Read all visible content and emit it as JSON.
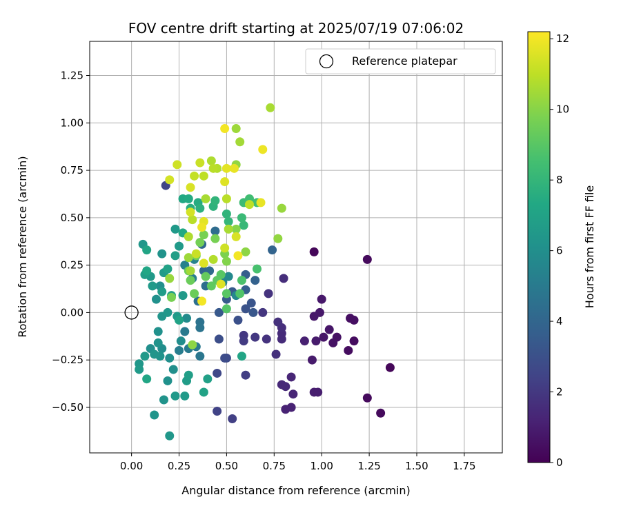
{
  "chart_data": {
    "type": "scatter",
    "title": "FOV centre drift starting at 2025/07/19 07:06:02",
    "xlabel": "Angular distance from reference (arcmin)",
    "ylabel": "Rotation from reference (arcmin)",
    "xlim": [
      -0.22,
      1.95
    ],
    "ylim": [
      -0.74,
      1.43
    ],
    "xticks": [
      "0.00",
      "0.25",
      "0.50",
      "0.75",
      "1.00",
      "1.25",
      "1.50",
      "1.75"
    ],
    "xtick_values": [
      0,
      0.25,
      0.5,
      0.75,
      1.0,
      1.25,
      1.5,
      1.75
    ],
    "yticks": [
      "−0.50",
      "−0.25",
      "0.00",
      "0.25",
      "0.50",
      "0.75",
      "1.00",
      "1.25"
    ],
    "ytick_values": [
      -0.5,
      -0.25,
      0,
      0.25,
      0.5,
      0.75,
      1.0,
      1.25
    ],
    "grid": true,
    "legend": {
      "position": "top-right",
      "entries": [
        "Reference platepar"
      ]
    },
    "reference_point": {
      "x": 0.0,
      "y": 0.0
    },
    "colorbar": {
      "label": "Hours from first FF file",
      "range": [
        0,
        12.2
      ],
      "ticks": [
        "0",
        "2",
        "4",
        "6",
        "8",
        "10",
        "12"
      ],
      "tick_values": [
        0,
        2,
        4,
        6,
        8,
        10,
        12
      ],
      "colormap": "viridis"
    },
    "points": [
      {
        "x": 0.96,
        "y": 0.32,
        "h": 0.2
      },
      {
        "x": 1.24,
        "y": 0.28,
        "h": 0.3
      },
      {
        "x": 1.36,
        "y": -0.29,
        "h": 0.2
      },
      {
        "x": 1.31,
        "y": -0.53,
        "h": 0.3
      },
      {
        "x": 1.24,
        "y": -0.45,
        "h": 0.3
      },
      {
        "x": 1.17,
        "y": -0.15,
        "h": 0.4
      },
      {
        "x": 1.14,
        "y": -0.2,
        "h": 0.4
      },
      {
        "x": 1.15,
        "y": -0.03,
        "h": 0.5
      },
      {
        "x": 1.17,
        "y": -0.04,
        "h": 0.5
      },
      {
        "x": 1.08,
        "y": -0.13,
        "h": 0.6
      },
      {
        "x": 1.06,
        "y": -0.16,
        "h": 0.6
      },
      {
        "x": 1.04,
        "y": -0.09,
        "h": 0.7
      },
      {
        "x": 1.01,
        "y": -0.13,
        "h": 0.7
      },
      {
        "x": 1.0,
        "y": 0.07,
        "h": 0.8
      },
      {
        "x": 0.99,
        "y": 0.0,
        "h": 0.8
      },
      {
        "x": 0.96,
        "y": -0.02,
        "h": 0.8
      },
      {
        "x": 0.97,
        "y": -0.15,
        "h": 0.9
      },
      {
        "x": 0.95,
        "y": -0.25,
        "h": 0.9
      },
      {
        "x": 0.96,
        "y": -0.42,
        "h": 1.0
      },
      {
        "x": 0.98,
        "y": -0.42,
        "h": 1.0
      },
      {
        "x": 0.91,
        "y": -0.15,
        "h": 1.1
      },
      {
        "x": 0.84,
        "y": -0.5,
        "h": 1.2
      },
      {
        "x": 0.81,
        "y": -0.51,
        "h": 1.2
      },
      {
        "x": 0.85,
        "y": -0.43,
        "h": 1.3
      },
      {
        "x": 0.84,
        "y": -0.34,
        "h": 1.3
      },
      {
        "x": 0.79,
        "y": -0.38,
        "h": 1.4
      },
      {
        "x": 0.81,
        "y": -0.39,
        "h": 1.4
      },
      {
        "x": 0.79,
        "y": -0.14,
        "h": 1.5
      },
      {
        "x": 0.79,
        "y": -0.11,
        "h": 1.5
      },
      {
        "x": 0.79,
        "y": -0.08,
        "h": 1.6
      },
      {
        "x": 0.8,
        "y": 0.18,
        "h": 1.6
      },
      {
        "x": 0.77,
        "y": -0.05,
        "h": 1.7
      },
      {
        "x": 0.76,
        "y": -0.22,
        "h": 1.7
      },
      {
        "x": 0.71,
        "y": -0.14,
        "h": 1.8
      },
      {
        "x": 0.72,
        "y": 0.1,
        "h": 1.8
      },
      {
        "x": 0.69,
        "y": 0.0,
        "h": 1.9
      },
      {
        "x": 0.65,
        "y": -0.13,
        "h": 2.0
      },
      {
        "x": 0.59,
        "y": -0.12,
        "h": 2.0
      },
      {
        "x": 0.59,
        "y": -0.15,
        "h": 2.1
      },
      {
        "x": 0.6,
        "y": -0.33,
        "h": 2.2
      },
      {
        "x": 0.53,
        "y": -0.56,
        "h": 2.3
      },
      {
        "x": 0.45,
        "y": -0.52,
        "h": 2.4
      },
      {
        "x": 0.18,
        "y": 0.67,
        "h": 2.5
      },
      {
        "x": 0.45,
        "y": -0.32,
        "h": 2.6
      },
      {
        "x": 0.5,
        "y": -0.24,
        "h": 2.7
      },
      {
        "x": 0.49,
        "y": -0.24,
        "h": 2.8
      },
      {
        "x": 0.46,
        "y": -0.14,
        "h": 2.9
      },
      {
        "x": 0.56,
        "y": -0.04,
        "h": 3.0
      },
      {
        "x": 0.6,
        "y": 0.02,
        "h": 3.1
      },
      {
        "x": 0.63,
        "y": 0.05,
        "h": 3.2
      },
      {
        "x": 0.64,
        "y": 0.0,
        "h": 3.3
      },
      {
        "x": 0.46,
        "y": 0.0,
        "h": 3.4
      },
      {
        "x": 0.53,
        "y": 0.11,
        "h": 3.5
      },
      {
        "x": 0.5,
        "y": 0.07,
        "h": 3.5
      },
      {
        "x": 0.6,
        "y": 0.2,
        "h": 3.6
      },
      {
        "x": 0.6,
        "y": 0.12,
        "h": 3.7
      },
      {
        "x": 0.65,
        "y": 0.17,
        "h": 3.8
      },
      {
        "x": 0.74,
        "y": 0.33,
        "h": 3.9
      },
      {
        "x": 0.38,
        "y": 0.22,
        "h": 4.0
      },
      {
        "x": 0.37,
        "y": 0.36,
        "h": 4.1
      },
      {
        "x": 0.41,
        "y": 0.22,
        "h": 4.2
      },
      {
        "x": 0.44,
        "y": 0.43,
        "h": 4.3
      },
      {
        "x": 0.39,
        "y": 0.14,
        "h": 4.4
      },
      {
        "x": 0.35,
        "y": 0.06,
        "h": 4.5
      },
      {
        "x": 0.36,
        "y": -0.05,
        "h": 4.6
      },
      {
        "x": 0.36,
        "y": -0.08,
        "h": 4.7
      },
      {
        "x": 0.36,
        "y": -0.23,
        "h": 4.8
      },
      {
        "x": 0.34,
        "y": -0.18,
        "h": 4.9
      },
      {
        "x": 0.3,
        "y": -0.19,
        "h": 5.0
      },
      {
        "x": 0.28,
        "y": -0.1,
        "h": 5.0
      },
      {
        "x": 0.25,
        "y": -0.2,
        "h": 5.1
      },
      {
        "x": 0.32,
        "y": 0.18,
        "h": 5.2
      },
      {
        "x": 0.28,
        "y": 0.25,
        "h": 5.3
      },
      {
        "x": 0.33,
        "y": 0.28,
        "h": 5.4
      },
      {
        "x": 0.48,
        "y": 0.16,
        "h": 5.5
      },
      {
        "x": 0.55,
        "y": 0.09,
        "h": 5.6
      },
      {
        "x": 0.51,
        "y": 0.19,
        "h": 5.7
      },
      {
        "x": 0.29,
        "y": -0.03,
        "h": 5.8
      },
      {
        "x": 0.26,
        "y": -0.15,
        "h": 5.9
      },
      {
        "x": 0.2,
        "y": -0.24,
        "h": 6.0
      },
      {
        "x": 0.22,
        "y": -0.3,
        "h": 6.0
      },
      {
        "x": 0.19,
        "y": -0.36,
        "h": 6.1
      },
      {
        "x": 0.17,
        "y": -0.46,
        "h": 6.2
      },
      {
        "x": 0.12,
        "y": -0.54,
        "h": 6.3
      },
      {
        "x": 0.2,
        "y": -0.65,
        "h": 6.4
      },
      {
        "x": 0.23,
        "y": -0.44,
        "h": 6.5
      },
      {
        "x": 0.28,
        "y": -0.44,
        "h": 6.6
      },
      {
        "x": 0.29,
        "y": -0.36,
        "h": 6.7
      },
      {
        "x": 0.3,
        "y": -0.33,
        "h": 6.8
      },
      {
        "x": 0.4,
        "y": -0.35,
        "h": 6.9
      },
      {
        "x": 0.38,
        "y": -0.42,
        "h": 7.0
      },
      {
        "x": 0.58,
        "y": -0.23,
        "h": 7.1
      },
      {
        "x": 0.07,
        "y": -0.23,
        "h": 6.5
      },
      {
        "x": 0.04,
        "y": -0.27,
        "h": 6.4
      },
      {
        "x": 0.04,
        "y": -0.3,
        "h": 6.6
      },
      {
        "x": 0.08,
        "y": -0.35,
        "h": 7.2
      },
      {
        "x": 0.15,
        "y": -0.23,
        "h": 6.2
      },
      {
        "x": 0.12,
        "y": -0.22,
        "h": 6.3
      },
      {
        "x": 0.1,
        "y": -0.19,
        "h": 6.0
      },
      {
        "x": 0.14,
        "y": -0.16,
        "h": 6.2
      },
      {
        "x": 0.16,
        "y": -0.19,
        "h": 5.9
      },
      {
        "x": 0.14,
        "y": -0.1,
        "h": 6.1
      },
      {
        "x": 0.16,
        "y": -0.02,
        "h": 6.3
      },
      {
        "x": 0.19,
        "y": 0.0,
        "h": 6.4
      },
      {
        "x": 0.24,
        "y": -0.02,
        "h": 6.6
      },
      {
        "x": 0.25,
        "y": -0.04,
        "h": 7.0
      },
      {
        "x": 0.27,
        "y": 0.09,
        "h": 6.5
      },
      {
        "x": 0.21,
        "y": 0.09,
        "h": 6.8
      },
      {
        "x": 0.16,
        "y": 0.11,
        "h": 6.7
      },
      {
        "x": 0.13,
        "y": 0.07,
        "h": 6.1
      },
      {
        "x": 0.11,
        "y": 0.14,
        "h": 6.6
      },
      {
        "x": 0.15,
        "y": 0.14,
        "h": 6.0
      },
      {
        "x": 0.1,
        "y": 0.19,
        "h": 6.5
      },
      {
        "x": 0.07,
        "y": 0.2,
        "h": 6.8
      },
      {
        "x": 0.08,
        "y": 0.22,
        "h": 7.2
      },
      {
        "x": 0.17,
        "y": 0.21,
        "h": 6.6
      },
      {
        "x": 0.19,
        "y": 0.23,
        "h": 7.0
      },
      {
        "x": 0.23,
        "y": 0.3,
        "h": 6.8
      },
      {
        "x": 0.25,
        "y": 0.35,
        "h": 6.6
      },
      {
        "x": 0.16,
        "y": 0.31,
        "h": 6.2
      },
      {
        "x": 0.06,
        "y": 0.36,
        "h": 6.4
      },
      {
        "x": 0.08,
        "y": 0.33,
        "h": 7.1
      },
      {
        "x": 0.23,
        "y": 0.44,
        "h": 6.5
      },
      {
        "x": 0.27,
        "y": 0.42,
        "h": 7.3
      },
      {
        "x": 0.27,
        "y": 0.6,
        "h": 7.3
      },
      {
        "x": 0.3,
        "y": 0.6,
        "h": 7.4
      },
      {
        "x": 0.35,
        "y": 0.58,
        "h": 7.5
      },
      {
        "x": 0.31,
        "y": 0.55,
        "h": 7.6
      },
      {
        "x": 0.36,
        "y": 0.55,
        "h": 7.7
      },
      {
        "x": 0.43,
        "y": 0.56,
        "h": 7.8
      },
      {
        "x": 0.44,
        "y": 0.59,
        "h": 7.9
      },
      {
        "x": 0.5,
        "y": 0.52,
        "h": 7.9
      },
      {
        "x": 0.51,
        "y": 0.48,
        "h": 8.0
      },
      {
        "x": 0.59,
        "y": 0.46,
        "h": 8.1
      },
      {
        "x": 0.58,
        "y": 0.5,
        "h": 8.2
      },
      {
        "x": 0.59,
        "y": 0.58,
        "h": 8.3
      },
      {
        "x": 0.62,
        "y": 0.6,
        "h": 8.4
      },
      {
        "x": 0.66,
        "y": 0.58,
        "h": 8.5
      },
      {
        "x": 0.66,
        "y": 0.23,
        "h": 8.6
      },
      {
        "x": 0.58,
        "y": 0.17,
        "h": 8.7
      },
      {
        "x": 0.57,
        "y": 0.1,
        "h": 8.8
      },
      {
        "x": 0.5,
        "y": 0.02,
        "h": 8.9
      },
      {
        "x": 0.5,
        "y": 0.1,
        "h": 9.0
      },
      {
        "x": 0.47,
        "y": 0.2,
        "h": 9.0
      },
      {
        "x": 0.45,
        "y": 0.17,
        "h": 9.1
      },
      {
        "x": 0.42,
        "y": 0.14,
        "h": 9.2
      },
      {
        "x": 0.39,
        "y": 0.19,
        "h": 9.3
      },
      {
        "x": 0.33,
        "y": 0.1,
        "h": 9.4
      },
      {
        "x": 0.31,
        "y": 0.17,
        "h": 9.4
      },
      {
        "x": 0.3,
        "y": 0.22,
        "h": 9.5
      },
      {
        "x": 0.34,
        "y": 0.3,
        "h": 9.5
      },
      {
        "x": 0.36,
        "y": 0.37,
        "h": 9.6
      },
      {
        "x": 0.38,
        "y": 0.41,
        "h": 9.7
      },
      {
        "x": 0.44,
        "y": 0.39,
        "h": 9.7
      },
      {
        "x": 0.49,
        "y": 0.31,
        "h": 9.8
      },
      {
        "x": 0.5,
        "y": 0.27,
        "h": 9.9
      },
      {
        "x": 0.55,
        "y": 0.44,
        "h": 10.0
      },
      {
        "x": 0.6,
        "y": 0.32,
        "h": 10.1
      },
      {
        "x": 0.77,
        "y": 0.39,
        "h": 10.2
      },
      {
        "x": 0.79,
        "y": 0.55,
        "h": 10.3
      },
      {
        "x": 0.55,
        "y": 0.97,
        "h": 10.4
      },
      {
        "x": 0.57,
        "y": 0.9,
        "h": 10.5
      },
      {
        "x": 0.73,
        "y": 1.08,
        "h": 10.6
      },
      {
        "x": 0.42,
        "y": 0.8,
        "h": 10.7
      },
      {
        "x": 0.45,
        "y": 0.76,
        "h": 10.8
      },
      {
        "x": 0.43,
        "y": 0.76,
        "h": 10.9
      },
      {
        "x": 0.38,
        "y": 0.72,
        "h": 11.0
      },
      {
        "x": 0.33,
        "y": 0.72,
        "h": 11.1
      },
      {
        "x": 0.36,
        "y": 0.79,
        "h": 11.2
      },
      {
        "x": 0.24,
        "y": 0.78,
        "h": 11.3
      },
      {
        "x": 0.2,
        "y": 0.7,
        "h": 11.4
      },
      {
        "x": 0.31,
        "y": 0.66,
        "h": 11.5
      },
      {
        "x": 0.49,
        "y": 0.69,
        "h": 11.6
      },
      {
        "x": 0.5,
        "y": 0.76,
        "h": 11.7
      },
      {
        "x": 0.54,
        "y": 0.76,
        "h": 11.8
      },
      {
        "x": 0.69,
        "y": 0.86,
        "h": 11.9
      },
      {
        "x": 0.49,
        "y": 0.97,
        "h": 12.0
      },
      {
        "x": 0.55,
        "y": 0.78,
        "h": 10.2
      },
      {
        "x": 0.51,
        "y": 0.44,
        "h": 10.6
      },
      {
        "x": 0.62,
        "y": 0.57,
        "h": 11.0
      },
      {
        "x": 0.68,
        "y": 0.58,
        "h": 11.8
      },
      {
        "x": 0.55,
        "y": 0.4,
        "h": 11.5
      },
      {
        "x": 0.56,
        "y": 0.3,
        "h": 12.0
      },
      {
        "x": 0.49,
        "y": 0.34,
        "h": 11.3
      },
      {
        "x": 0.47,
        "y": 0.15,
        "h": 11.6
      },
      {
        "x": 0.43,
        "y": 0.28,
        "h": 10.8
      },
      {
        "x": 0.31,
        "y": 0.53,
        "h": 11.4
      },
      {
        "x": 0.32,
        "y": 0.49,
        "h": 10.9
      },
      {
        "x": 0.38,
        "y": 0.48,
        "h": 11.7
      },
      {
        "x": 0.37,
        "y": 0.45,
        "h": 11.9
      },
      {
        "x": 0.34,
        "y": 0.31,
        "h": 11.2
      },
      {
        "x": 0.38,
        "y": 0.26,
        "h": 11.6
      },
      {
        "x": 0.3,
        "y": 0.29,
        "h": 10.4
      },
      {
        "x": 0.3,
        "y": 0.4,
        "h": 10.7
      },
      {
        "x": 0.31,
        "y": 0.22,
        "h": 10.5
      },
      {
        "x": 0.32,
        "y": -0.17,
        "h": 10.1
      },
      {
        "x": 0.37,
        "y": 0.06,
        "h": 12.0
      },
      {
        "x": 0.2,
        "y": 0.18,
        "h": 10.3
      },
      {
        "x": 0.21,
        "y": 0.08,
        "h": 9.7
      },
      {
        "x": 0.39,
        "y": 0.6,
        "h": 10.6
      },
      {
        "x": 0.5,
        "y": 0.6,
        "h": 10.9
      }
    ]
  }
}
